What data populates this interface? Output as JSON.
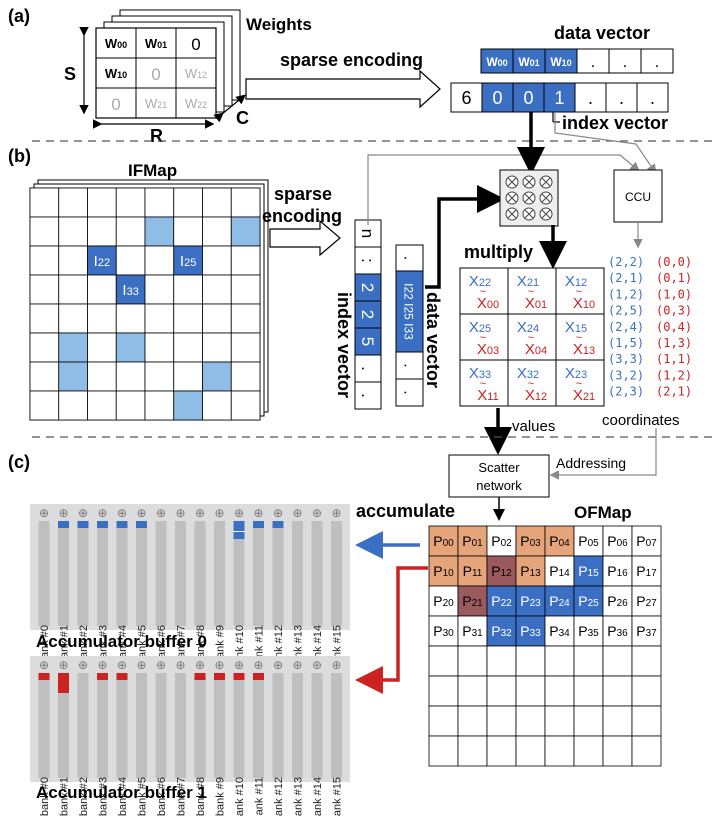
{
  "panel_a": {
    "label": "(a)",
    "weights_title": "Weights",
    "weights_cells": [
      "W00",
      "W01",
      "0",
      "W10",
      "0",
      "W12",
      "0",
      "W21",
      "W22"
    ],
    "dim_s": "S",
    "dim_r": "R",
    "dim_c": "C",
    "arrow_label": "sparse encoding",
    "data_vector_label": "data vector",
    "data_vector_cells": [
      "W00",
      "W01",
      "W10",
      ".",
      ".",
      "."
    ],
    "index_vector_label": "index vector",
    "index_vector_cells": [
      "6",
      "0",
      "0",
      "1",
      ".",
      ".",
      "."
    ]
  },
  "panel_b": {
    "label": "(b)",
    "ifmap_title": "IFMap",
    "ifmap_labels": [
      "I22",
      "I25",
      "I33"
    ],
    "arrow_label_1": "sparse",
    "arrow_label_2": "encoding",
    "index_vector_cells": [
      "n",
      ":",
      "2",
      "2",
      "5",
      ".",
      "."
    ],
    "index_vector_label": "index vector",
    "data_vector_cells": [
      ".",
      "I22 I25 I33",
      ".",
      "."
    ],
    "data_vector_label": "data vector",
    "ccu_label": "CCU",
    "multiply_label": "multiply",
    "product_cells": [
      {
        "x": "X22",
        "y": "X00"
      },
      {
        "x": "X21",
        "y": "X01"
      },
      {
        "x": "X12",
        "y": "X10"
      },
      {
        "x": "X25",
        "y": "X03"
      },
      {
        "x": "X24",
        "y": "X04"
      },
      {
        "x": "X15",
        "y": "X13"
      },
      {
        "x": "X33",
        "y": "X11"
      },
      {
        "x": "X32",
        "y": "X12"
      },
      {
        "x": "X23",
        "y": "X21"
      }
    ],
    "coords_left": [
      "(2,2)",
      "(2,1)",
      "(1,2)",
      "(2,5)",
      "(2,4)",
      "(1,5)",
      "(3,3)",
      "(3,2)",
      "(2,3)"
    ],
    "coords_right": [
      "(0,0)",
      "(0,1)",
      "(1,0)",
      "(0,3)",
      "(0,4)",
      "(1,3)",
      "(1,1)",
      "(1,2)",
      "(2,1)"
    ],
    "coordinates_label": "coordinates",
    "values_label": "values"
  },
  "panel_c": {
    "label": "(c)",
    "scatter_label_1": "Scatter",
    "scatter_label_2": "network",
    "addressing_label": "Addressing",
    "accumulate_label": "accumulate",
    "ofmap_title": "OFMap",
    "ofmap_rows": [
      [
        "P00",
        "P01",
        "P02",
        "P03",
        "P04",
        "P05",
        "P06",
        "P07"
      ],
      [
        "P10",
        "P11",
        "P12",
        "P13",
        "P14",
        "P15",
        "P16",
        "P17"
      ],
      [
        "P20",
        "P21",
        "P22",
        "P23",
        "P24",
        "P25",
        "P26",
        "P27"
      ],
      [
        "P30",
        "P31",
        "P32",
        "P33",
        "P34",
        "P35",
        "P36",
        "P37"
      ]
    ],
    "banks": [
      "bank #0",
      "bank #1",
      "bank #2",
      "bank #3",
      "bank #4",
      "bank #5",
      "bank #6",
      "bank #7",
      "bank #8",
      "bank #9",
      "bank #10",
      "bank #11",
      "bank #12",
      "bank #13",
      "bank #14",
      "bank #15"
    ],
    "buffer0_label": "Accumulator buffer 0",
    "buffer1_label": "Accumulator buffer 1",
    "plus_glyph": "⊕",
    "buffer0_levels": [
      0,
      1,
      1,
      1,
      1,
      1,
      0,
      0,
      0,
      0,
      2,
      1,
      1,
      0,
      0,
      0
    ],
    "buffer1_levels": [
      1,
      3,
      0,
      1,
      1,
      0,
      0,
      0,
      1,
      1,
      1,
      1,
      0,
      0,
      0,
      0
    ]
  },
  "colors": {
    "blue": "#3a6fc4",
    "light_blue": "#8fbde6",
    "orange": "#e6a47a",
    "maroon": "#9a5a5e",
    "red": "#cc2222",
    "bank_gray": "#bfbfbf",
    "panel_gray": "#dcdcdc"
  }
}
